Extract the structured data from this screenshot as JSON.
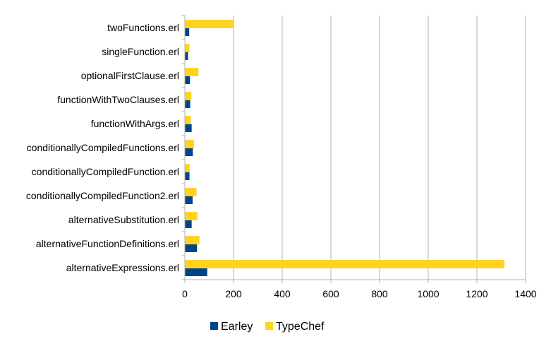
{
  "chart_data": {
    "type": "bar",
    "orientation": "horizontal",
    "categories": [
      "twoFunctions.erl",
      "singleFunction.erl",
      "optionalFirstClause.erl",
      "functionWithTwoClauses.erl",
      "functionWithArgs.erl",
      "conditionallyCompiledFunctions.erl",
      "conditionallyCompiledFunction.erl",
      "conditionallyCompiledFunction2.erl",
      "alternativeSubstitution.erl",
      "alternativeFunctionDefinitions.erl",
      "alternativeExpressions.erl"
    ],
    "series": [
      {
        "name": "Earley",
        "color": "#004586",
        "values": [
          18,
          13,
          21,
          22,
          28,
          33,
          19,
          32,
          28,
          50,
          92
        ]
      },
      {
        "name": "TypeChef",
        "color": "#ffd320",
        "values": [
          198,
          19,
          56,
          27,
          24,
          38,
          20,
          48,
          52,
          60,
          1313
        ]
      }
    ],
    "xlim": [
      0,
      1400
    ],
    "xticks": [
      "0",
      "200",
      "400",
      "600",
      "800",
      "1000",
      "1200",
      "1400"
    ],
    "grid": "vertical",
    "legend": "bottom"
  }
}
